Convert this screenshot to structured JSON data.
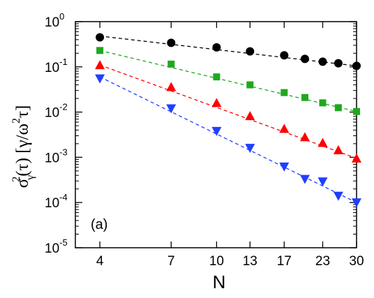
{
  "chart_data": {
    "type": "scatter",
    "panel_label": "(a)",
    "xlabel": "N",
    "ylabel_parts": {
      "sigma": "σ",
      "sup": "2",
      "sub": "γ",
      "tau_arg": "(τ) [γ/ω",
      "sup2": "2",
      "tail": "τ]"
    },
    "x_scale": "log",
    "y_scale": "log",
    "xlim": [
      3.3,
      30
    ],
    "ylim": [
      1e-05,
      1
    ],
    "x_ticks": [
      4,
      7,
      10,
      13,
      17,
      23,
      30
    ],
    "y_ticks": [
      {
        "value": 1,
        "mantissa": "10",
        "exp": "0"
      },
      {
        "value": 0.1,
        "mantissa": "10",
        "exp": "-1"
      },
      {
        "value": 0.01,
        "mantissa": "10",
        "exp": "-2"
      },
      {
        "value": 0.001,
        "mantissa": "10",
        "exp": "-3"
      },
      {
        "value": 0.0001,
        "mantissa": "10",
        "exp": "-4"
      },
      {
        "value": 1e-05,
        "mantissa": "10",
        "exp": "-5"
      }
    ],
    "series": [
      {
        "color": "#000000",
        "marker": "circle",
        "x": [
          4,
          7,
          10,
          13,
          17,
          20,
          23,
          26,
          30
        ],
        "y": [
          0.45,
          0.34,
          0.27,
          0.22,
          0.18,
          0.15,
          0.13,
          0.12,
          0.105
        ],
        "fit": [
          0.48,
          0.105
        ]
      },
      {
        "color": "#1fa81f",
        "marker": "square",
        "x": [
          4,
          7,
          10,
          13,
          17,
          20,
          23,
          26,
          30
        ],
        "y": [
          0.23,
          0.115,
          0.06,
          0.04,
          0.027,
          0.021,
          0.016,
          0.0125,
          0.0103
        ],
        "fit": [
          0.23,
          0.0103
        ]
      },
      {
        "color": "#ff0000",
        "marker": "triangle-up",
        "x": [
          4,
          7,
          10,
          13,
          17,
          20,
          23,
          26,
          30
        ],
        "y": [
          0.11,
          0.036,
          0.016,
          0.0082,
          0.0043,
          0.0028,
          0.0021,
          0.00145,
          0.00095
        ],
        "fit": [
          0.11,
          0.00095
        ]
      },
      {
        "color": "#1f3fff",
        "marker": "triangle-down",
        "x": [
          4,
          7,
          10,
          13,
          17,
          20,
          23,
          26,
          30
        ],
        "y": [
          0.055,
          0.012,
          0.0038,
          0.0016,
          0.00062,
          0.00033,
          0.00029,
          0.00014,
          0.0001
        ],
        "fit": [
          0.06,
          0.0001
        ]
      }
    ]
  }
}
